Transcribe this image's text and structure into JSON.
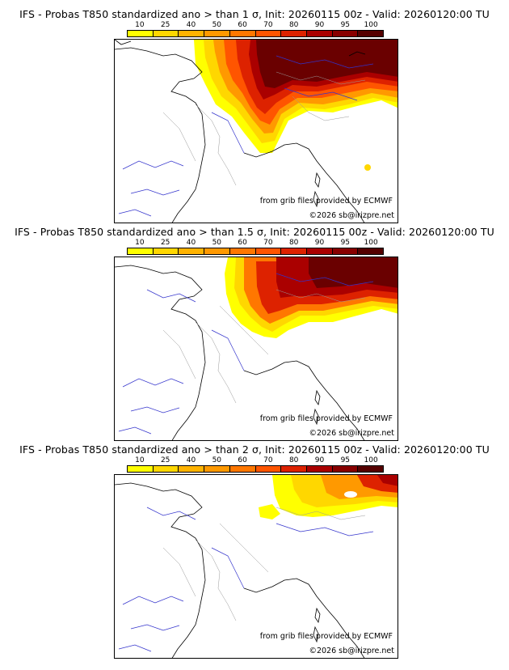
{
  "colorbar": {
    "ticks": [
      "10",
      "25",
      "40",
      "50",
      "60",
      "70",
      "80",
      "90",
      "95",
      "100"
    ],
    "colors": [
      "#ffff00",
      "#ffd700",
      "#ffb300",
      "#ff9900",
      "#ff7700",
      "#ff5500",
      "#dd2200",
      "#aa0000",
      "#880000",
      "#550000"
    ]
  },
  "credits": {
    "source": "from grib files provided by ECMWF",
    "copyright": "©2026 sb@irizpre.net"
  },
  "panels": [
    {
      "title": "IFS - Probas T850  standardized ano > than 1 σ, Init: 20260115 00z - Valid: 20260120:00 TU",
      "threshold_sigma": 1
    },
    {
      "title": "IFS - Probas T850  standardized ano > than 1.5 σ, Init: 20260115 00z - Valid: 20260120:00 TU",
      "threshold_sigma": 1.5
    },
    {
      "title": "IFS - Probas T850  standardized ano > than 2 σ, Init: 20260115 00z - Valid: 20260120:00 TU",
      "threshold_sigma": 2
    }
  ]
}
